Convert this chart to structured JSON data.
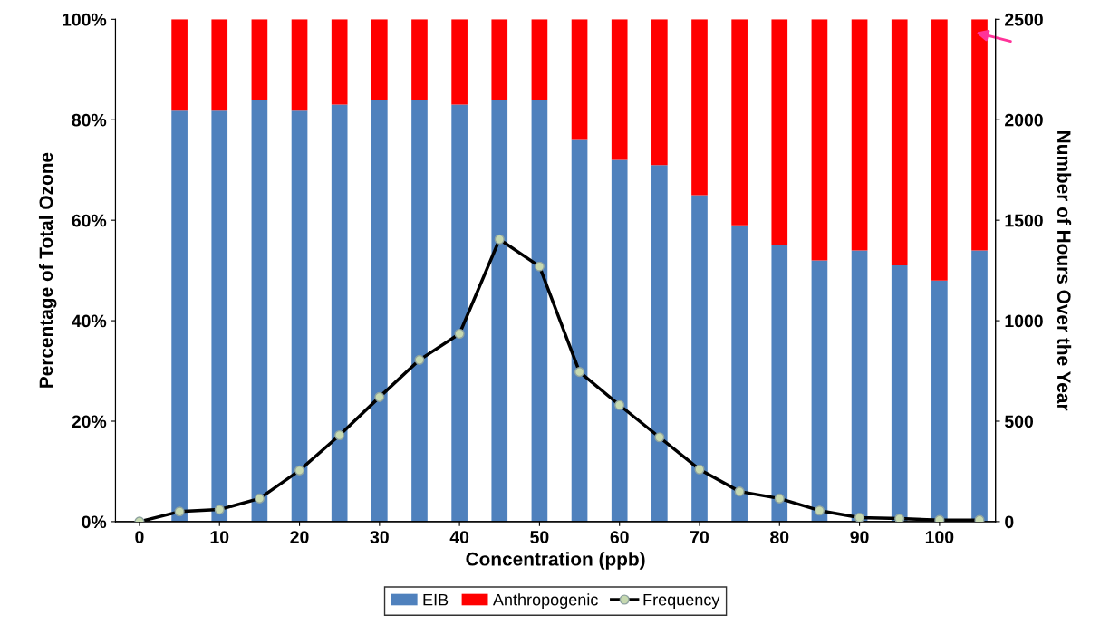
{
  "chart_data": {
    "type": "bar",
    "stacked": true,
    "xlabel": "Concentration (ppb)",
    "ylabel": "Percentage of Total Ozone",
    "y2label": "Number of Hours Over the Year",
    "xlim": [
      -3,
      107
    ],
    "xticks": [
      0,
      10,
      20,
      30,
      40,
      50,
      60,
      70,
      80,
      90,
      100
    ],
    "ylim": [
      0,
      100
    ],
    "yticks": [
      {
        "value": 0,
        "label": "0%"
      },
      {
        "value": 20,
        "label": "20%"
      },
      {
        "value": 40,
        "label": "40%"
      },
      {
        "value": 60,
        "label": "60%"
      },
      {
        "value": 80,
        "label": "80%"
      },
      {
        "value": 100,
        "label": "100%"
      }
    ],
    "y2lim": [
      0,
      2500
    ],
    "y2ticks": [
      0,
      500,
      1000,
      1500,
      2000,
      2500
    ],
    "grid": false,
    "legend": "bottom",
    "series": [
      {
        "name": "EIB",
        "color": "#4f81bd",
        "x": [
          5,
          10,
          15,
          20,
          25,
          30,
          35,
          40,
          45,
          50,
          55,
          60,
          65,
          70,
          75,
          80,
          85,
          90,
          95,
          100,
          105
        ],
        "values": [
          82,
          82,
          84,
          82,
          83,
          84,
          84,
          83,
          84,
          84,
          76,
          72,
          71,
          65,
          59,
          55,
          52,
          54,
          51,
          48,
          54
        ]
      },
      {
        "name": "Anthropogenic",
        "color": "#ff0000",
        "x": [
          5,
          10,
          15,
          20,
          25,
          30,
          35,
          40,
          45,
          50,
          55,
          60,
          65,
          70,
          75,
          80,
          85,
          90,
          95,
          100,
          105
        ],
        "values": [
          18,
          18,
          16,
          18,
          17,
          16,
          16,
          17,
          16,
          16,
          24,
          28,
          29,
          35,
          41,
          45,
          48,
          46,
          49,
          52,
          46
        ]
      },
      {
        "name": "Frequency",
        "type": "line",
        "axis": "y2",
        "color": "#000000",
        "marker": "circle",
        "x": [
          0,
          5,
          10,
          15,
          20,
          25,
          30,
          35,
          40,
          45,
          50,
          55,
          60,
          65,
          70,
          75,
          80,
          85,
          90,
          95,
          100,
          105
        ],
        "values": [
          0,
          50,
          60,
          115,
          255,
          430,
          620,
          805,
          935,
          1405,
          1270,
          745,
          580,
          420,
          260,
          150,
          115,
          55,
          20,
          15,
          8,
          8
        ]
      }
    ]
  }
}
